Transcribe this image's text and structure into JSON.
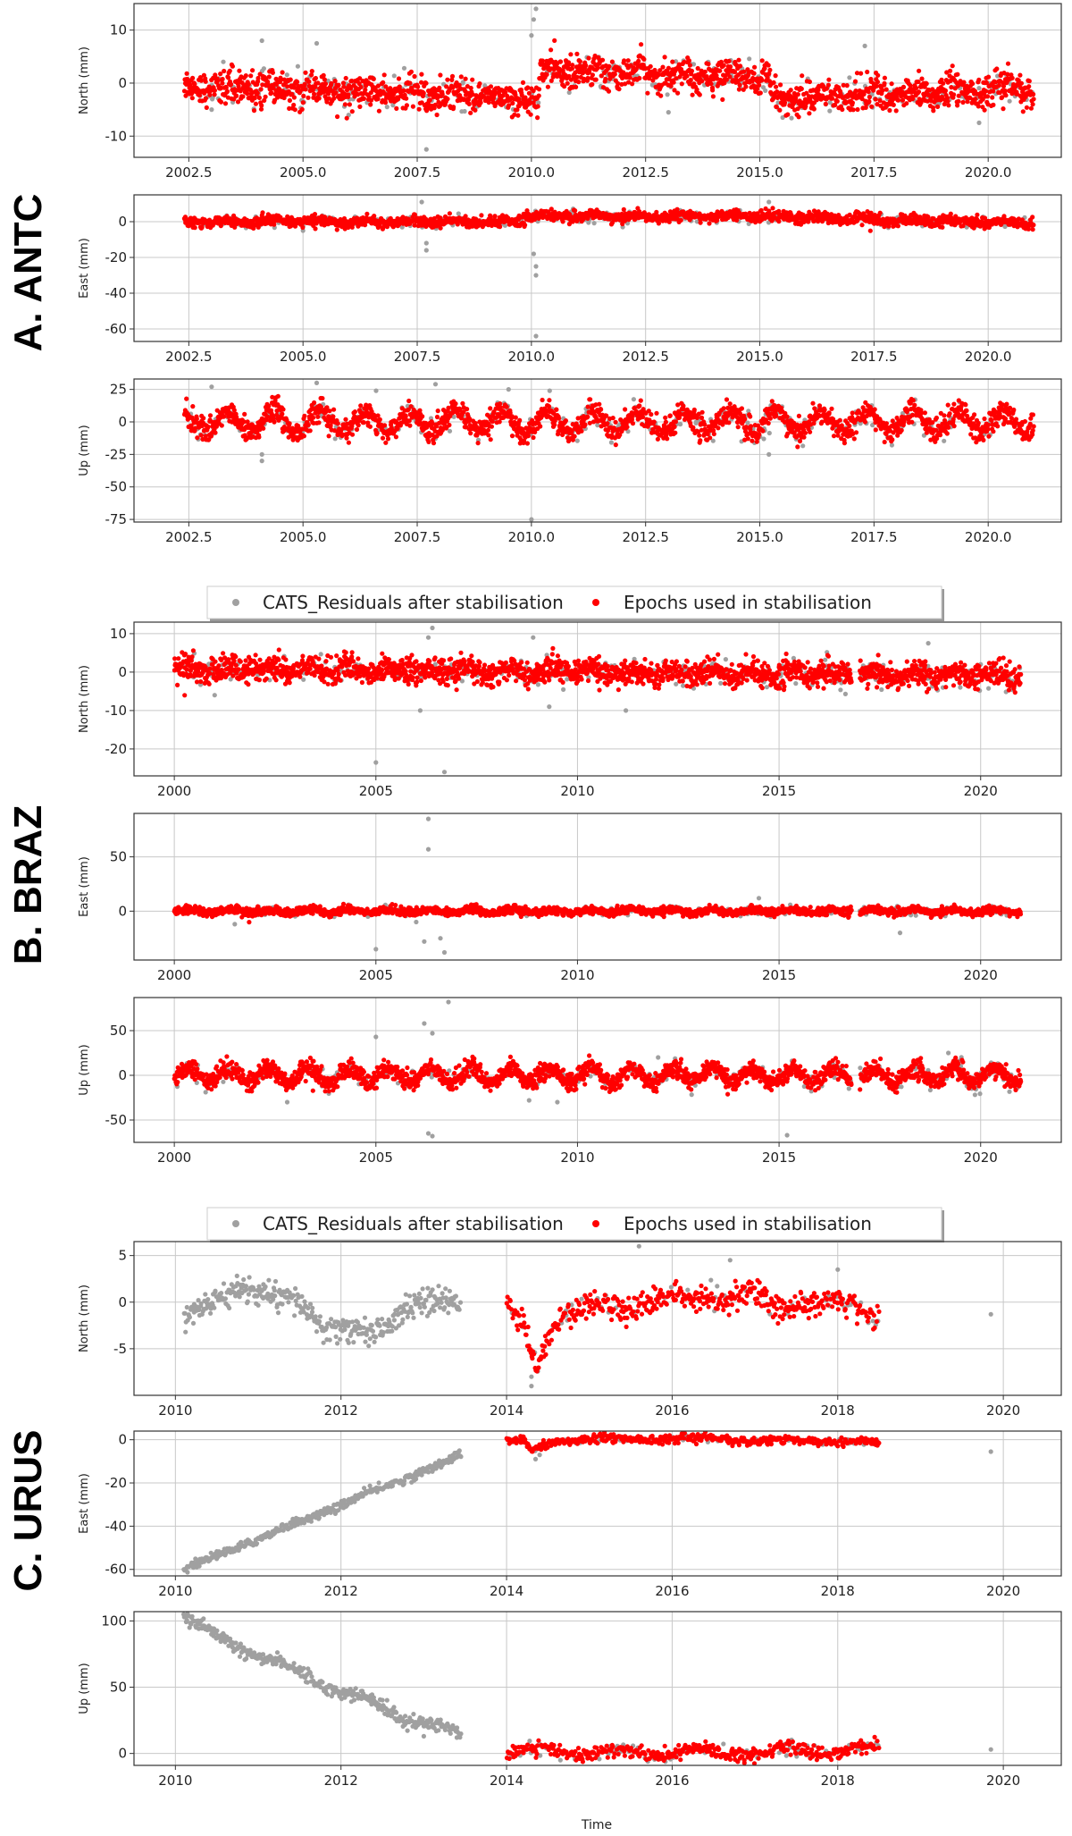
{
  "colors": {
    "residuals": "#a0a0a0",
    "epochs": "#ff0000",
    "grid": "#c8c8c8",
    "frame": "#333333"
  },
  "xlabel": "Time",
  "legend": {
    "residuals": "CATS_Residuals after stabilisation",
    "epochs": "Epochs used in stabilisation"
  },
  "chart_data": [
    {
      "station": "A. ANTC",
      "type": "scatter",
      "x_range": [
        2001.3,
        2021.6
      ],
      "x_ticks": [
        2002.5,
        2005.0,
        2007.5,
        2010.0,
        2012.5,
        2015.0,
        2017.5,
        2020.0
      ],
      "x_tick_labels": [
        "2002.5",
        "2005.0",
        "2007.5",
        "2010.0",
        "2012.5",
        "2015.0",
        "2017.5",
        "2020.0"
      ],
      "x_data_range": [
        2002.4,
        2021.0
      ],
      "gaps": [],
      "panels": [
        {
          "ylabel": "North (mm)",
          "ylim": [
            -14,
            15
          ],
          "y_ticks": [
            -10,
            0,
            10
          ],
          "red_range": [
            2002.4,
            2021.0
          ],
          "spread": 1.5,
          "trend": [
            [
              2002.4,
              -0.5
            ],
            [
              2010.15,
              -3.0
            ],
            [
              2010.2,
              2.5
            ],
            [
              2015.2,
              1.0
            ],
            [
              2015.25,
              -3.0
            ],
            [
              2021.0,
              -1.0
            ]
          ],
          "seasonal": 0.6,
          "outliers": [
            [
              2007.7,
              -12.5
            ],
            [
              2010.1,
              14.0
            ],
            [
              2010.05,
              12.0
            ],
            [
              2010.0,
              9.0
            ],
            [
              2004.1,
              8.0
            ],
            [
              2005.3,
              7.5
            ],
            [
              2017.3,
              7.0
            ],
            [
              2019.8,
              -7.5
            ],
            [
              2015.5,
              -6.5
            ],
            [
              2003.0,
              -5.0
            ],
            [
              2006.0,
              -6.0
            ],
            [
              2013.0,
              -5.5
            ]
          ]
        },
        {
          "ylabel": "East (mm)",
          "ylim": [
            -67,
            15
          ],
          "y_ticks": [
            -60,
            -40,
            -20,
            0
          ],
          "red_range": [
            2002.4,
            2021.0
          ],
          "spread": 1.5,
          "trend": [
            [
              2002.4,
              0.0
            ],
            [
              2009.5,
              0.0
            ],
            [
              2010.0,
              3.0
            ],
            [
              2015.0,
              3.0
            ],
            [
              2021.0,
              -1.0
            ]
          ],
          "seasonal": 0.8,
          "outliers": [
            [
              2010.1,
              -64.0
            ],
            [
              2010.1,
              -30.0
            ],
            [
              2010.1,
              -25.0
            ],
            [
              2010.05,
              -18.0
            ],
            [
              2007.7,
              -16.0
            ],
            [
              2007.7,
              -12.0
            ],
            [
              2007.6,
              11.0
            ],
            [
              2015.2,
              11.0
            ],
            [
              2005.0,
              -5.0
            ],
            [
              2012.0,
              -3.0
            ]
          ]
        },
        {
          "ylabel": "Up (mm)",
          "ylim": [
            -77,
            33
          ],
          "y_ticks": [
            -75,
            -50,
            -25,
            0,
            25
          ],
          "red_range": [
            2002.4,
            2021.0
          ],
          "spread": 4.5,
          "trend": [
            [
              2002.4,
              0.0
            ],
            [
              2021.0,
              0.0
            ]
          ],
          "seasonal": 8,
          "outliers": [
            [
              2010.0,
              -75.0
            ],
            [
              2004.1,
              -30.0
            ],
            [
              2004.1,
              -25.0
            ],
            [
              2005.3,
              30.0
            ],
            [
              2007.9,
              29.0
            ],
            [
              2009.5,
              25.0
            ],
            [
              2010.4,
              24.0
            ],
            [
              2015.2,
              -25.0
            ],
            [
              2003.0,
              27.0
            ],
            [
              2006.6,
              24.0
            ],
            [
              2014.6,
              -15.0
            ]
          ]
        }
      ]
    },
    {
      "station": "B. BRAZ",
      "type": "scatter",
      "x_range": [
        1999.0,
        2022.0
      ],
      "x_ticks": [
        2000,
        2005,
        2010,
        2015,
        2020
      ],
      "x_tick_labels": [
        "2000",
        "2005",
        "2010",
        "2015",
        "2020"
      ],
      "x_data_range": [
        2000.0,
        2021.0
      ],
      "gaps": [
        [
          2016.8,
          2017.0
        ]
      ],
      "panels": [
        {
          "ylabel": "North (mm)",
          "ylim": [
            -27,
            13
          ],
          "y_ticks": [
            -20,
            -10,
            0,
            10
          ],
          "red_range": [
            2000.0,
            2021.0
          ],
          "spread": 1.6,
          "trend": [
            [
              2000.0,
              1.0
            ],
            [
              2021.0,
              -1.0
            ]
          ],
          "seasonal": 0.8,
          "outliers": [
            [
              2006.7,
              -26.0
            ],
            [
              2005.0,
              -23.5
            ],
            [
              2006.1,
              -10.0
            ],
            [
              2006.4,
              11.5
            ],
            [
              2006.3,
              9.0
            ],
            [
              2008.9,
              9.0
            ],
            [
              2009.3,
              -9.0
            ],
            [
              2011.2,
              -10.0
            ],
            [
              2018.7,
              7.5
            ],
            [
              2001.0,
              -6.0
            ]
          ]
        },
        {
          "ylabel": "East (mm)",
          "ylim": [
            -45,
            90
          ],
          "y_ticks": [
            0,
            50
          ],
          "red_range": [
            2000.0,
            2021.0
          ],
          "spread": 1.8,
          "trend": [
            [
              2000.0,
              0.0
            ],
            [
              2021.0,
              0.0
            ]
          ],
          "seasonal": 1.5,
          "outliers": [
            [
              2006.3,
              85.0
            ],
            [
              2006.3,
              57.0
            ],
            [
              2006.7,
              -38.0
            ],
            [
              2005.0,
              -35.0
            ],
            [
              2006.2,
              -28.0
            ],
            [
              2006.6,
              -25.0
            ],
            [
              2018.0,
              -20.0
            ],
            [
              2006.0,
              -10.0
            ],
            [
              2014.5,
              12.0
            ],
            [
              2001.5,
              -12.0
            ]
          ]
        },
        {
          "ylabel": "Up (mm)",
          "ylim": [
            -75,
            87
          ],
          "y_ticks": [
            -50,
            0,
            50
          ],
          "red_range": [
            2000.0,
            2021.0
          ],
          "spread": 5,
          "trend": [
            [
              2000.0,
              0.0
            ],
            [
              2021.0,
              0.0
            ]
          ],
          "seasonal": 8,
          "outliers": [
            [
              2006.8,
              82.0
            ],
            [
              2006.2,
              58.0
            ],
            [
              2006.4,
              47.0
            ],
            [
              2005.0,
              43.0
            ],
            [
              2006.3,
              -65.0
            ],
            [
              2006.4,
              -68.0
            ],
            [
              2015.2,
              -67.0
            ],
            [
              2009.5,
              -30.0
            ],
            [
              2002.8,
              -30.0
            ],
            [
              2008.8,
              -28.0
            ],
            [
              2019.2,
              25.0
            ],
            [
              2012.0,
              20.0
            ]
          ]
        }
      ]
    },
    {
      "station": "C. URUS",
      "type": "scatter",
      "x_range": [
        2009.5,
        2020.7
      ],
      "x_ticks": [
        2010,
        2012,
        2014,
        2016,
        2018,
        2020
      ],
      "x_tick_labels": [
        "2010",
        "2012",
        "2014",
        "2016",
        "2018",
        "2020"
      ],
      "x_data_range": [
        2010.1,
        2018.5
      ],
      "gaps": [
        [
          2013.45,
          2014.0
        ]
      ],
      "panels": [
        {
          "ylabel": "North (mm)",
          "ylim": [
            -10,
            6.5
          ],
          "y_ticks": [
            -5,
            0,
            5
          ],
          "red_range": [
            2014.0,
            2018.5
          ],
          "spread": 0.7,
          "trend": [
            [
              2010.1,
              -1.5
            ],
            [
              2010.8,
              1.5
            ],
            [
              2011.5,
              0.0
            ],
            [
              2011.8,
              -3.0
            ],
            [
              2012.5,
              -3.0
            ],
            [
              2012.9,
              0.0
            ],
            [
              2013.4,
              0.0
            ],
            [
              2014.0,
              0.0
            ],
            [
              2014.2,
              -2.0
            ],
            [
              2014.35,
              -7.0
            ],
            [
              2014.6,
              -2.0
            ],
            [
              2015.0,
              0.0
            ],
            [
              2015.5,
              -1.0
            ],
            [
              2016.0,
              1.0
            ],
            [
              2016.6,
              0.0
            ],
            [
              2017.0,
              1.5
            ],
            [
              2017.3,
              -1.0
            ],
            [
              2018.0,
              0.5
            ],
            [
              2018.5,
              -2.0
            ]
          ],
          "seasonal": 0,
          "outliers": [
            [
              2014.3,
              -9.0
            ],
            [
              2014.3,
              -8.0
            ],
            [
              2015.6,
              6.0
            ],
            [
              2016.7,
              4.5
            ],
            [
              2018.0,
              3.5
            ],
            [
              2019.85,
              -1.3
            ],
            [
              2013.4,
              -0.5
            ]
          ]
        },
        {
          "ylabel": "East (mm)",
          "ylim": [
            -63,
            4
          ],
          "y_ticks": [
            -60,
            -40,
            -20,
            0
          ],
          "red_range": [
            2014.0,
            2018.5
          ],
          "spread": 1.0,
          "trend": [
            [
              2010.1,
              -60.0
            ],
            [
              2013.4,
              -8.0
            ],
            [
              2014.0,
              0.0
            ],
            [
              2014.2,
              0.0
            ],
            [
              2014.3,
              -5.0
            ],
            [
              2014.7,
              0.0
            ],
            [
              2016.0,
              0.5
            ],
            [
              2018.5,
              -1.0
            ]
          ],
          "seasonal": 0.5,
          "outliers": [
            [
              2019.85,
              -5.5
            ],
            [
              2014.35,
              -9.0
            ],
            [
              2014.4,
              -7.0
            ],
            [
              2013.4,
              -6.0
            ]
          ]
        },
        {
          "ylabel": "Up (mm)",
          "ylim": [
            -9,
            107
          ],
          "y_ticks": [
            0,
            50,
            100
          ],
          "red_range": [
            2014.0,
            2018.5
          ],
          "spread": 2.5,
          "trend": [
            [
              2010.1,
              100.0
            ],
            [
              2010.5,
              88.0
            ],
            [
              2011.0,
              75.0
            ],
            [
              2011.5,
              60.0
            ],
            [
              2012.0,
              48.0
            ],
            [
              2012.3,
              40.0
            ],
            [
              2012.6,
              30.0
            ],
            [
              2013.0,
              25.0
            ],
            [
              2013.4,
              14.0
            ],
            [
              2014.0,
              2.0
            ],
            [
              2016.0,
              0.0
            ],
            [
              2018.5,
              3.0
            ]
          ],
          "seasonal": 3,
          "outliers": [
            [
              2019.85,
              3.0
            ],
            [
              2013.4,
              12.0
            ],
            [
              2013.0,
              13.0
            ],
            [
              2010.1,
              105.0
            ]
          ]
        }
      ]
    }
  ]
}
